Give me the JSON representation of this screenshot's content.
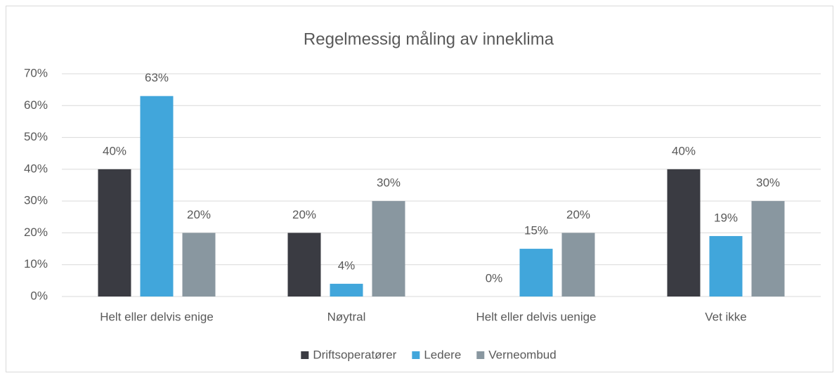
{
  "chart_data": {
    "type": "bar",
    "title": "Regelmessig måling av inneklima",
    "categories": [
      "Helt eller delvis enige",
      "Nøytral",
      "Helt eller delvis uenige",
      "Vet ikke"
    ],
    "series": [
      {
        "name": "Driftsoperatører",
        "color": "#3a3b42",
        "values": [
          40,
          20,
          0,
          40
        ],
        "value_labels": [
          "40%",
          "20%",
          "0%",
          "40%"
        ]
      },
      {
        "name": "Ledere",
        "color": "#41a6db",
        "values": [
          63,
          4,
          15,
          19
        ],
        "value_labels": [
          "63%",
          "4%",
          "15%",
          "19%"
        ]
      },
      {
        "name": "Verneombud",
        "color": "#8997a0",
        "values": [
          20,
          30,
          20,
          30
        ],
        "value_labels": [
          "20%",
          "30%",
          "20%",
          "30%"
        ]
      }
    ],
    "ylim": [
      0,
      70
    ],
    "yticks": [
      {
        "value": 0,
        "label": "0%"
      },
      {
        "value": 10,
        "label": "10%"
      },
      {
        "value": 20,
        "label": "20%"
      },
      {
        "value": 30,
        "label": "30%"
      },
      {
        "value": 40,
        "label": "40%"
      },
      {
        "value": 50,
        "label": "50%"
      },
      {
        "value": 60,
        "label": "60%"
      },
      {
        "value": 70,
        "label": "70%"
      }
    ],
    "grid": true,
    "legend": "bottom"
  }
}
